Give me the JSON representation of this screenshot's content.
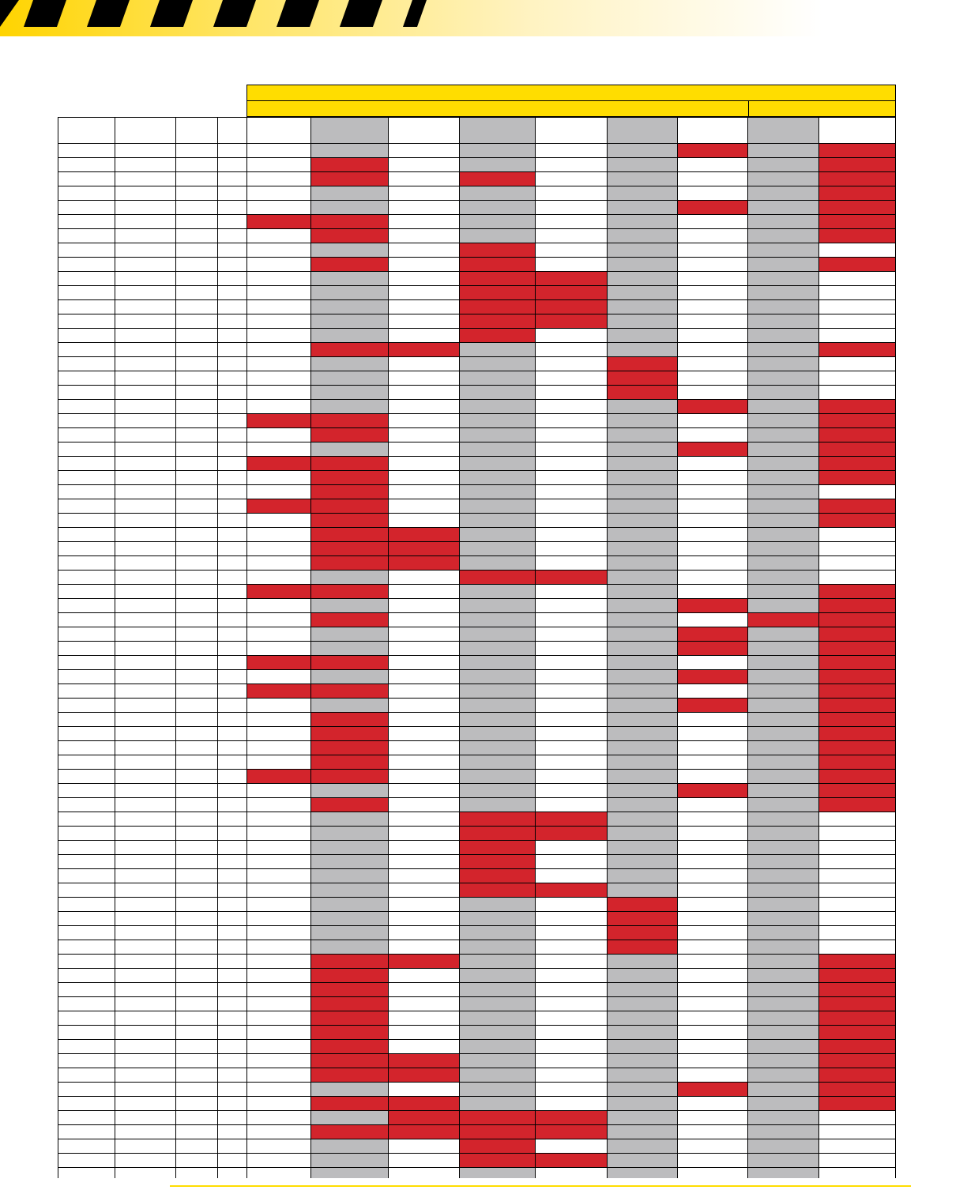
{
  "colors": {
    "accent_yellow": "#ffdd00",
    "stripe_black": "#000000",
    "mark_red": "#d3242c",
    "band_gray": "#bcbcbe",
    "cell_white": "#ffffff"
  },
  "header": {
    "top_label": "",
    "sub_left_label": "",
    "sub_right_label": ""
  },
  "matrix": {
    "row_count": 73,
    "gray_columns": [
      5,
      7,
      9,
      11
    ],
    "red_cells": [
      [
        1,
        10
      ],
      [
        1,
        12
      ],
      [
        2,
        5
      ],
      [
        2,
        12
      ],
      [
        3,
        5
      ],
      [
        3,
        7
      ],
      [
        3,
        12
      ],
      [
        4,
        12
      ],
      [
        5,
        10
      ],
      [
        5,
        12
      ],
      [
        6,
        4
      ],
      [
        6,
        5
      ],
      [
        6,
        12
      ],
      [
        7,
        5
      ],
      [
        7,
        12
      ],
      [
        8,
        7
      ],
      [
        9,
        5
      ],
      [
        9,
        7
      ],
      [
        9,
        12
      ],
      [
        10,
        7
      ],
      [
        10,
        8
      ],
      [
        11,
        7
      ],
      [
        11,
        8
      ],
      [
        12,
        7
      ],
      [
        12,
        8
      ],
      [
        13,
        7
      ],
      [
        13,
        8
      ],
      [
        14,
        7
      ],
      [
        15,
        5
      ],
      [
        15,
        6
      ],
      [
        15,
        12
      ],
      [
        16,
        9
      ],
      [
        17,
        9
      ],
      [
        18,
        9
      ],
      [
        19,
        10
      ],
      [
        19,
        12
      ],
      [
        20,
        4
      ],
      [
        20,
        5
      ],
      [
        20,
        12
      ],
      [
        21,
        5
      ],
      [
        21,
        12
      ],
      [
        22,
        10
      ],
      [
        22,
        12
      ],
      [
        23,
        4
      ],
      [
        23,
        5
      ],
      [
        23,
        12
      ],
      [
        24,
        5
      ],
      [
        24,
        12
      ],
      [
        25,
        5
      ],
      [
        26,
        4
      ],
      [
        26,
        5
      ],
      [
        26,
        12
      ],
      [
        27,
        5
      ],
      [
        27,
        12
      ],
      [
        28,
        5
      ],
      [
        28,
        6
      ],
      [
        29,
        5
      ],
      [
        29,
        6
      ],
      [
        30,
        5
      ],
      [
        30,
        6
      ],
      [
        31,
        7
      ],
      [
        31,
        8
      ],
      [
        32,
        4
      ],
      [
        32,
        5
      ],
      [
        32,
        12
      ],
      [
        33,
        10
      ],
      [
        33,
        12
      ],
      [
        34,
        5
      ],
      [
        34,
        11
      ],
      [
        34,
        12
      ],
      [
        35,
        10
      ],
      [
        35,
        12
      ],
      [
        36,
        10
      ],
      [
        36,
        12
      ],
      [
        37,
        4
      ],
      [
        37,
        5
      ],
      [
        37,
        12
      ],
      [
        38,
        10
      ],
      [
        38,
        12
      ],
      [
        39,
        4
      ],
      [
        39,
        5
      ],
      [
        39,
        12
      ],
      [
        40,
        10
      ],
      [
        40,
        12
      ],
      [
        41,
        5
      ],
      [
        41,
        12
      ],
      [
        42,
        5
      ],
      [
        42,
        12
      ],
      [
        43,
        5
      ],
      [
        43,
        12
      ],
      [
        44,
        5
      ],
      [
        44,
        12
      ],
      [
        45,
        4
      ],
      [
        45,
        5
      ],
      [
        45,
        12
      ],
      [
        46,
        10
      ],
      [
        46,
        12
      ],
      [
        47,
        5
      ],
      [
        47,
        12
      ],
      [
        48,
        7
      ],
      [
        48,
        8
      ],
      [
        49,
        7
      ],
      [
        49,
        8
      ],
      [
        50,
        7
      ],
      [
        51,
        7
      ],
      [
        52,
        7
      ],
      [
        53,
        7
      ],
      [
        53,
        8
      ],
      [
        54,
        9
      ],
      [
        55,
        9
      ],
      [
        56,
        9
      ],
      [
        57,
        9
      ],
      [
        58,
        5
      ],
      [
        58,
        6
      ],
      [
        58,
        12
      ],
      [
        59,
        5
      ],
      [
        59,
        12
      ],
      [
        60,
        5
      ],
      [
        60,
        12
      ],
      [
        61,
        5
      ],
      [
        61,
        12
      ],
      [
        62,
        5
      ],
      [
        62,
        12
      ],
      [
        63,
        5
      ],
      [
        63,
        12
      ],
      [
        64,
        5
      ],
      [
        64,
        12
      ],
      [
        65,
        5
      ],
      [
        65,
        6
      ],
      [
        65,
        12
      ],
      [
        66,
        5
      ],
      [
        66,
        6
      ],
      [
        66,
        12
      ],
      [
        67,
        10
      ],
      [
        67,
        12
      ],
      [
        68,
        5
      ],
      [
        68,
        6
      ],
      [
        68,
        12
      ],
      [
        69,
        6
      ],
      [
        69,
        7
      ],
      [
        69,
        8
      ],
      [
        70,
        5
      ],
      [
        70,
        6
      ],
      [
        70,
        7
      ],
      [
        70,
        8
      ],
      [
        71,
        7
      ],
      [
        72,
        7
      ],
      [
        72,
        8
      ]
    ]
  }
}
